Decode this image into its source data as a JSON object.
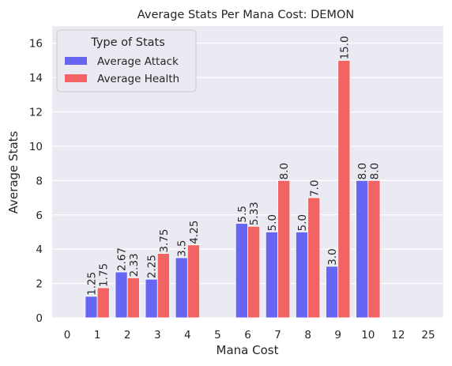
{
  "chart_data": {
    "type": "bar",
    "title": "Average Stats Per Mana Cost: DEMON",
    "xlabel": "Mana Cost",
    "ylabel": "Average Stats",
    "categories": [
      "0",
      "1",
      "2",
      "3",
      "4",
      "5",
      "6",
      "7",
      "8",
      "9",
      "10",
      "12",
      "25"
    ],
    "ylim": [
      0,
      17
    ],
    "yticks": [
      0,
      2,
      4,
      6,
      8,
      10,
      12,
      14,
      16
    ],
    "grid": true,
    "legend": {
      "title": "Type of Stats",
      "placement": "top-left"
    },
    "series": [
      {
        "name": "Average Attack",
        "color": "#6666f2",
        "values": [
          null,
          1.25,
          2.67,
          2.25,
          3.5,
          null,
          5.5,
          5.0,
          5.0,
          3.0,
          8.0,
          null,
          null
        ],
        "labels": [
          "",
          "1.25",
          "2.67",
          "2.25",
          "3.5",
          "",
          "5.5",
          "5.0",
          "5.0",
          "3.0",
          "8.0",
          "",
          ""
        ]
      },
      {
        "name": "Average Health",
        "color": "#f26464",
        "values": [
          null,
          1.75,
          2.33,
          3.75,
          4.25,
          null,
          5.33,
          8.0,
          7.0,
          15.0,
          8.0,
          null,
          null
        ],
        "labels": [
          "",
          "1.75",
          "2.33",
          "3.75",
          "4.25",
          "",
          "5.33",
          "8.0",
          "7.0",
          "15.0",
          "8.0",
          "",
          ""
        ]
      }
    ],
    "colors": {
      "background": "#eaeaf2",
      "grid": "#ffffff",
      "text": "#262626"
    }
  }
}
